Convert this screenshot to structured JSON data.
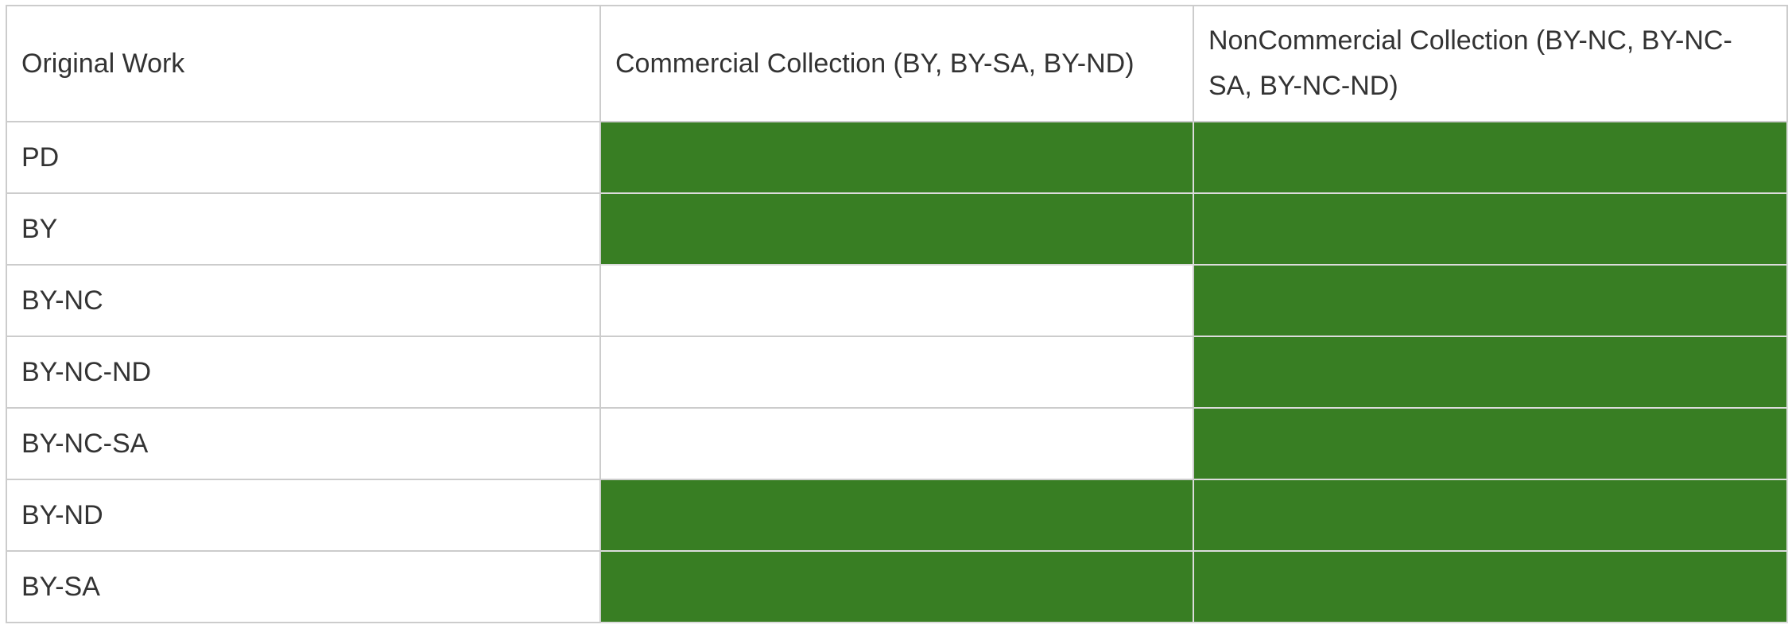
{
  "table": {
    "headers": [
      "Original Work",
      "Commercial Collection (BY, BY-SA, BY-ND)",
      "NonCommercial Collection (BY-NC, BY-NC-SA, BY-NC-ND)"
    ],
    "rows": [
      {
        "label": "PD",
        "commercial": true,
        "noncommercial": true
      },
      {
        "label": "BY",
        "commercial": true,
        "noncommercial": true
      },
      {
        "label": "BY-NC",
        "commercial": false,
        "noncommercial": true
      },
      {
        "label": "BY-NC-ND",
        "commercial": false,
        "noncommercial": true
      },
      {
        "label": "BY-NC-SA",
        "commercial": false,
        "noncommercial": true
      },
      {
        "label": "BY-ND",
        "commercial": true,
        "noncommercial": true
      },
      {
        "label": "BY-SA",
        "commercial": true,
        "noncommercial": true
      }
    ]
  },
  "colors": {
    "allowed": "#387e23",
    "not_allowed": "#ffffff",
    "border": "#cccccc",
    "text": "#333333"
  }
}
